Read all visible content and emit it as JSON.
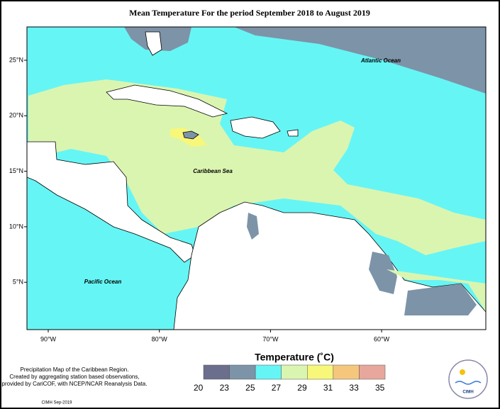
{
  "title": "Mean Temperature For the period September 2018 to August 2019",
  "map": {
    "labels": [
      "Atlantic Ocean",
      "Caribbean Sea",
      "Pacific Ocean"
    ],
    "lat_ticks": [
      "25°N",
      "20°N",
      "15°N",
      "10°N",
      "5°N"
    ],
    "lon_ticks": [
      "90°W",
      "80°W",
      "70°W",
      "60°W"
    ]
  },
  "legend": {
    "title": "Temperature (˚C)",
    "breaks": [
      20,
      23,
      25,
      27,
      29,
      31,
      33,
      35
    ],
    "colors": [
      "#6b6e8c",
      "#7d93a8",
      "#66f5f5",
      "#daf5b0",
      "#f7f77a",
      "#f5c77c",
      "#e8a79c"
    ]
  },
  "notes": [
    "Precipitation Map of the Caribbean Region.",
    "Created by aggregating station based observations,",
    "provided by CariCOF, with NCEP/NCAR Reanalysis Data."
  ],
  "credit": "CIMH Sep-2019",
  "logo": "CIMH"
}
